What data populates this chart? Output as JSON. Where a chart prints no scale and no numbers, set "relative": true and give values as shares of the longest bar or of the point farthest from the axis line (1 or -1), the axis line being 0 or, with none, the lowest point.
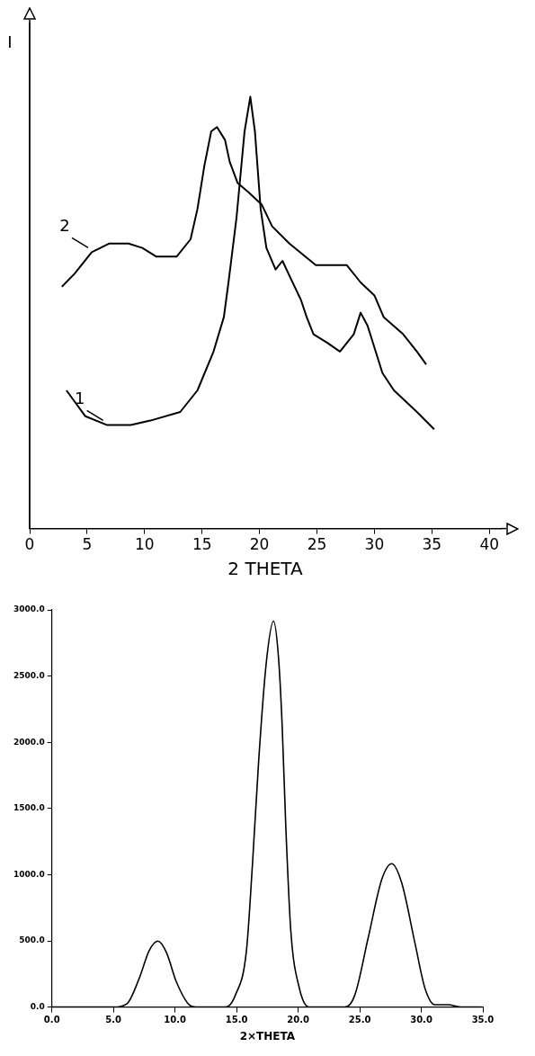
{
  "chart_data": [
    {
      "type": "line",
      "xlabel": "2 THETA",
      "ylabel": "I",
      "relative": true,
      "xlim": [
        0,
        41
      ],
      "xticks": [
        0,
        5,
        10,
        15,
        20,
        25,
        30,
        35,
        40
      ],
      "grid": false,
      "legend": false,
      "marker": "none",
      "line_style": "solid",
      "tick_labels": "x",
      "series": [
        {
          "name": "1",
          "color": "#000000",
          "x": [
            3.2,
            4.85,
            6.7,
            8.8,
            10.5,
            13.1,
            14.6,
            16.0,
            16.9,
            17.3,
            18.0,
            18.7,
            19.2,
            19.6,
            20.1,
            20.6,
            21.4,
            22.0,
            22.7,
            23.6,
            24.1,
            24.7,
            25.9,
            27.0,
            28.2,
            28.8,
            29.4,
            30.7,
            31.7,
            33.7,
            35.2
          ],
          "values": [
            0.32,
            0.26,
            0.24,
            0.24,
            0.25,
            0.27,
            0.32,
            0.41,
            0.49,
            0.57,
            0.72,
            0.92,
            1.0,
            0.92,
            0.74,
            0.65,
            0.6,
            0.62,
            0.58,
            0.53,
            0.49,
            0.45,
            0.43,
            0.41,
            0.45,
            0.5,
            0.47,
            0.36,
            0.32,
            0.27,
            0.23
          ]
        },
        {
          "name": "2",
          "color": "#000000",
          "x": [
            2.8,
            3.9,
            5.4,
            6.9,
            8.6,
            9.8,
            11.0,
            12.8,
            14.0,
            14.6,
            15.2,
            15.8,
            16.3,
            17.0,
            17.4,
            18.1,
            19.0,
            20.2,
            21.1,
            22.6,
            24.9,
            26.5,
            27.6,
            28.8,
            30.0,
            30.8,
            32.5,
            33.7,
            34.5
          ],
          "values": [
            0.56,
            0.59,
            0.64,
            0.66,
            0.66,
            0.65,
            0.63,
            0.63,
            0.67,
            0.74,
            0.84,
            0.92,
            0.93,
            0.9,
            0.85,
            0.8,
            0.78,
            0.75,
            0.7,
            0.66,
            0.61,
            0.61,
            0.61,
            0.57,
            0.54,
            0.49,
            0.45,
            0.41,
            0.38
          ]
        }
      ]
    },
    {
      "type": "line",
      "xlabel": "2×THETA",
      "xlim": [
        0,
        35
      ],
      "ylim": [
        0,
        3000
      ],
      "xticks": [
        {
          "value": 0,
          "label": "0.0"
        },
        {
          "value": 5,
          "label": "5.0"
        },
        {
          "value": 10,
          "label": "10.0"
        },
        {
          "value": 15,
          "label": "15.0"
        },
        {
          "value": 20,
          "label": "20.0"
        },
        {
          "value": 25,
          "label": "25.0"
        },
        {
          "value": 30,
          "label": "30.0"
        },
        {
          "value": 35,
          "label": "35.0"
        }
      ],
      "yticks": [
        {
          "value": 0,
          "label": "0.0"
        },
        {
          "value": 500,
          "label": "500.0"
        },
        {
          "value": 1000,
          "label": "1000.0"
        },
        {
          "value": 1500,
          "label": "1500.0"
        },
        {
          "value": 2000,
          "label": "2000.0"
        },
        {
          "value": 2500,
          "label": "2500.0"
        },
        {
          "value": 3000,
          "label": "3000.0"
        }
      ],
      "grid": false,
      "legend": false,
      "marker": "none",
      "line_style": "solid",
      "series": [
        {
          "color": "#000000",
          "x": [
            0,
            5.0,
            6.1,
            7.1,
            7.9,
            8.6,
            9.3,
            10.1,
            11.2,
            11.7,
            14.1,
            14.9,
            15.8,
            16.3,
            16.8,
            17.4,
            18.0,
            18.4,
            18.7,
            19.0,
            19.4,
            20.1,
            20.9,
            23.8,
            24.6,
            25.7,
            26.8,
            27.6,
            28.4,
            29.5,
            30.3,
            31.1,
            32.2,
            33.2,
            34.9
          ],
          "values": [
            0,
            0,
            26,
            219,
            426,
            498,
            413,
            193,
            13,
            0,
            0,
            90,
            426,
            1096,
            1870,
            2592,
            2915,
            2644,
            2128,
            1354,
            580,
            142,
            0,
            0,
            90,
            529,
            967,
            1083,
            941,
            477,
            142,
            18,
            18,
            0,
            0
          ]
        }
      ]
    }
  ]
}
